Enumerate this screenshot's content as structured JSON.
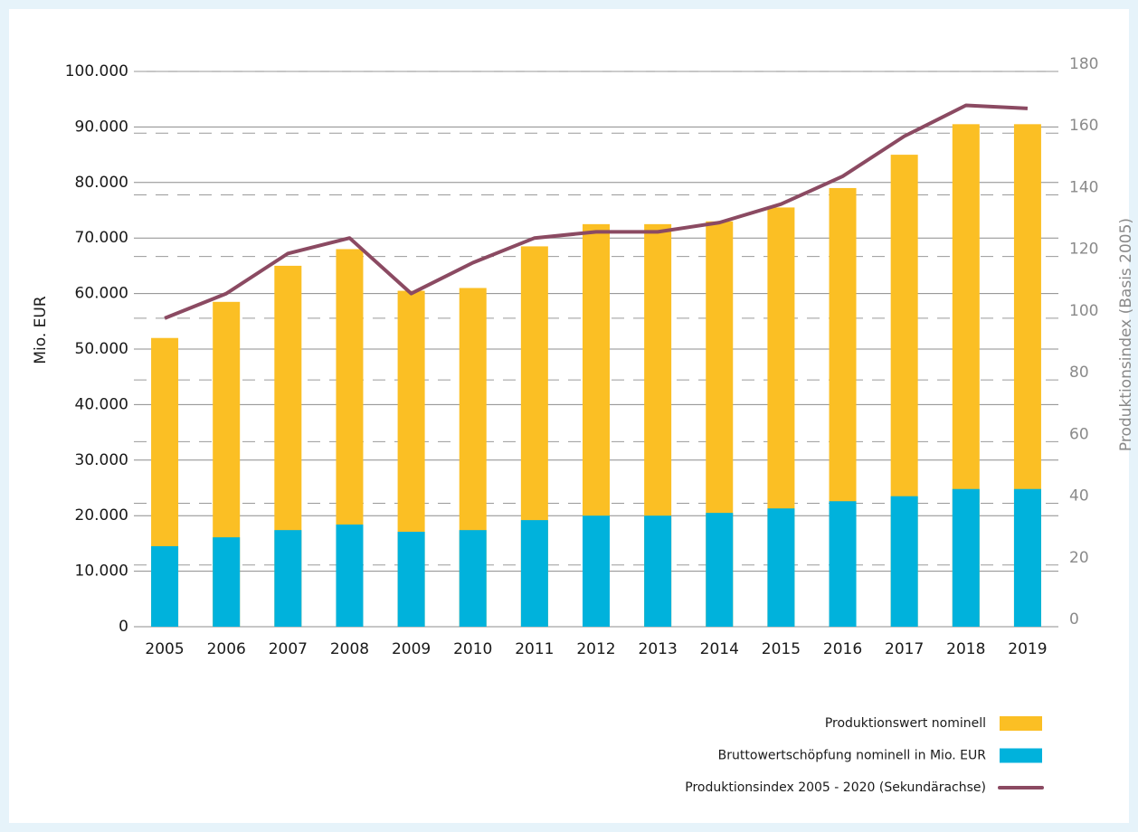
{
  "chart_data": {
    "type": "bar",
    "categories": [
      "2005",
      "2006",
      "2007",
      "2008",
      "2009",
      "2010",
      "2011",
      "2012",
      "2013",
      "2014",
      "2015",
      "2016",
      "2017",
      "2018",
      "2019"
    ],
    "series": [
      {
        "name": "Produktionswert nominell",
        "type": "bar",
        "color": "#fbbf24",
        "values": [
          52000,
          58500,
          65000,
          68000,
          60500,
          61000,
          68500,
          72500,
          72500,
          73000,
          75500,
          79000,
          85000,
          90500,
          90500
        ]
      },
      {
        "name": "Bruttowertschöpfung nominell in Mio. EUR",
        "type": "bar",
        "color": "#00b2dc",
        "values": [
          14500,
          16100,
          17400,
          18400,
          17100,
          17400,
          19200,
          20000,
          20000,
          20500,
          21300,
          22600,
          23500,
          24800,
          24800
        ]
      },
      {
        "name": "Produktionsindex 2005 - 2020 (Sekundärachse)",
        "type": "line",
        "axis": "y2",
        "color": "#8b4a62",
        "values": [
          100,
          108,
          121,
          126,
          108,
          118,
          126,
          128,
          128,
          131,
          137,
          146,
          159,
          169,
          168
        ]
      }
    ],
    "y_label": "Mio. EUR",
    "y2_label": "Produktionsindex (Basis 2005)",
    "ylim": [
      0,
      100000
    ],
    "yticks": [
      0,
      {
        "value": 10000,
        "label": "10.000"
      },
      {
        "value": 20000,
        "label": "20.000"
      },
      {
        "value": 30000,
        "label": "30.000"
      },
      {
        "value": 40000,
        "label": "40.000"
      },
      {
        "value": 50000,
        "label": "50.000"
      },
      {
        "value": 60000,
        "label": "60.000"
      },
      {
        "value": 70000,
        "label": "70.000"
      },
      {
        "value": 80000,
        "label": "80.000"
      },
      {
        "value": 90000,
        "label": "90.000"
      },
      {
        "value": 100000,
        "label": "100.000"
      }
    ],
    "y2lim": [
      0,
      180
    ],
    "y2ticks": [
      0,
      20,
      40,
      60,
      80,
      100,
      120,
      140,
      160,
      180
    ],
    "grid": true,
    "legend": "bottom-right"
  }
}
